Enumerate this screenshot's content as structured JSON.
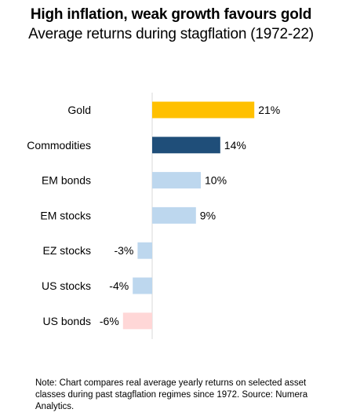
{
  "chart_data": {
    "type": "bar",
    "orientation": "horizontal",
    "title": "High inflation, weak growth favours gold",
    "subtitle": "Average returns during stagflation (1972-22)",
    "categories": [
      "Gold",
      "Commodities",
      "EM bonds",
      "EM stocks",
      "EZ stocks",
      "US stocks",
      "US bonds"
    ],
    "values": [
      21,
      14,
      10,
      9,
      -3,
      -4,
      -6
    ],
    "value_labels": [
      "21%",
      "14%",
      "10%",
      "9%",
      "-3%",
      "-4%",
      "-6%"
    ],
    "colors": [
      "#FFC000",
      "#1F4E79",
      "#BDD7EE",
      "#BDD7EE",
      "#BDD7EE",
      "#BDD7EE",
      "#FFD7D7"
    ],
    "xlim": [
      -6,
      21
    ],
    "grid": false,
    "legend": false
  },
  "note": "Note: Chart compares real average yearly returns on selected asset classes during past stagflation regimes since 1972. Source: Numera Analytics."
}
